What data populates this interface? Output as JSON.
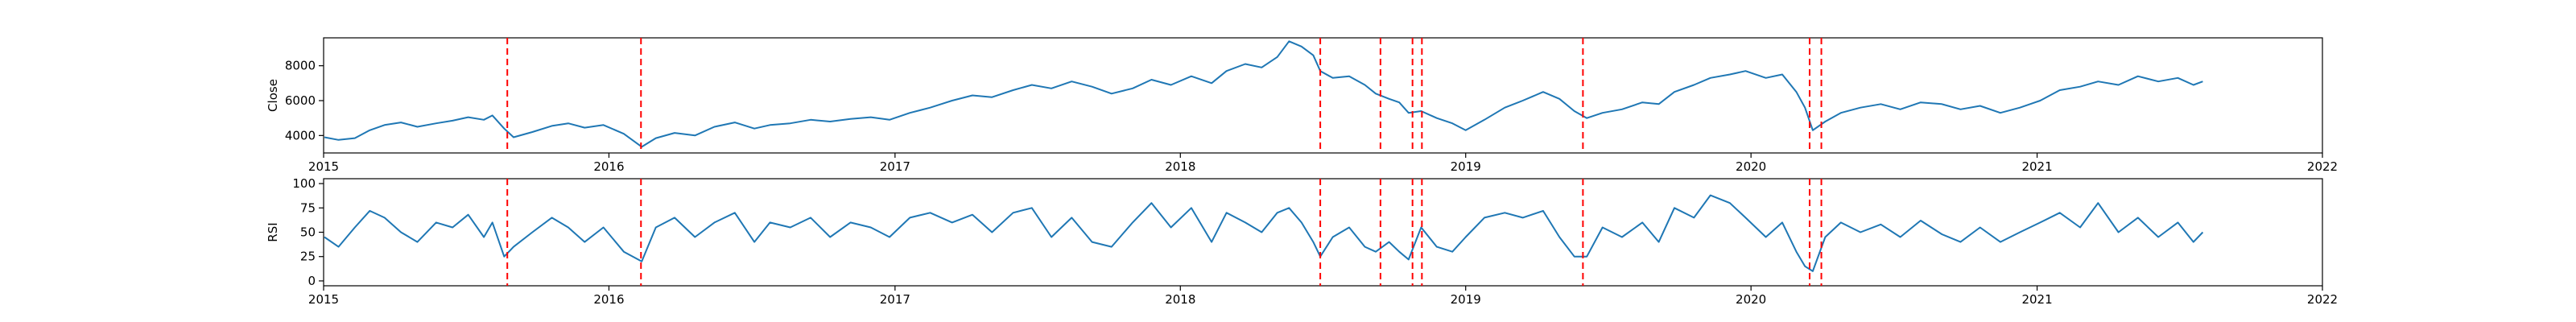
{
  "chart_data": [
    {
      "type": "line",
      "ylabel": "Close",
      "xlim": [
        "2015-01-01",
        "2022-01-01"
      ],
      "ylim": [
        3000,
        9600
      ],
      "x_ticks": [
        "2015",
        "2016",
        "2017",
        "2018",
        "2019",
        "2020",
        "2021",
        "2022"
      ],
      "y_ticks": [
        4000,
        6000,
        8000
      ],
      "line_color": "#1f77b4",
      "series": [
        {
          "values": [
            [
              "2015-01-02",
              3900
            ],
            [
              "2015-01-20",
              3750
            ],
            [
              "2015-02-10",
              3850
            ],
            [
              "2015-03-01",
              4300
            ],
            [
              "2015-03-20",
              4600
            ],
            [
              "2015-04-10",
              4750
            ],
            [
              "2015-05-01",
              4500
            ],
            [
              "2015-05-25",
              4700
            ],
            [
              "2015-06-15",
              4850
            ],
            [
              "2015-07-05",
              5050
            ],
            [
              "2015-07-25",
              4900
            ],
            [
              "2015-08-05",
              5150
            ],
            [
              "2015-08-20",
              4400
            ],
            [
              "2015-09-01",
              3900
            ],
            [
              "2015-09-25",
              4200
            ],
            [
              "2015-10-20",
              4550
            ],
            [
              "2015-11-10",
              4700
            ],
            [
              "2015-12-01",
              4450
            ],
            [
              "2015-12-25",
              4600
            ],
            [
              "2016-01-20",
              4100
            ],
            [
              "2016-02-12",
              3350
            ],
            [
              "2016-03-01",
              3850
            ],
            [
              "2016-03-25",
              4150
            ],
            [
              "2016-04-20",
              4000
            ],
            [
              "2016-05-15",
              4500
            ],
            [
              "2016-06-10",
              4750
            ],
            [
              "2016-07-05",
              4400
            ],
            [
              "2016-07-25",
              4600
            ],
            [
              "2016-08-20",
              4700
            ],
            [
              "2016-09-15",
              4900
            ],
            [
              "2016-10-10",
              4800
            ],
            [
              "2016-11-05",
              4950
            ],
            [
              "2016-12-01",
              5050
            ],
            [
              "2016-12-25",
              4900
            ],
            [
              "2017-01-20",
              5300
            ],
            [
              "2017-02-15",
              5600
            ],
            [
              "2017-03-15",
              6000
            ],
            [
              "2017-04-10",
              6300
            ],
            [
              "2017-05-05",
              6200
            ],
            [
              "2017-06-01",
              6600
            ],
            [
              "2017-06-25",
              6900
            ],
            [
              "2017-07-20",
              6700
            ],
            [
              "2017-08-15",
              7100
            ],
            [
              "2017-09-10",
              6800
            ],
            [
              "2017-10-05",
              6400
            ],
            [
              "2017-11-01",
              6700
            ],
            [
              "2017-11-25",
              7200
            ],
            [
              "2017-12-20",
              6900
            ],
            [
              "2018-01-15",
              7400
            ],
            [
              "2018-02-10",
              7000
            ],
            [
              "2018-03-01",
              7700
            ],
            [
              "2018-03-25",
              8100
            ],
            [
              "2018-04-15",
              7900
            ],
            [
              "2018-05-05",
              8500
            ],
            [
              "2018-05-20",
              9400
            ],
            [
              "2018-06-05",
              9100
            ],
            [
              "2018-06-20",
              8600
            ],
            [
              "2018-06-29",
              7700
            ],
            [
              "2018-07-15",
              7300
            ],
            [
              "2018-08-05",
              7400
            ],
            [
              "2018-08-25",
              6900
            ],
            [
              "2018-09-08",
              6400
            ],
            [
              "2018-09-25",
              6100
            ],
            [
              "2018-10-08",
              5900
            ],
            [
              "2018-10-20",
              5300
            ],
            [
              "2018-11-05",
              5400
            ],
            [
              "2018-11-25",
              5000
            ],
            [
              "2018-12-15",
              4700
            ],
            [
              "2019-01-01",
              4300
            ],
            [
              "2019-01-25",
              4900
            ],
            [
              "2019-02-20",
              5600
            ],
            [
              "2019-03-15",
              6000
            ],
            [
              "2019-04-10",
              6500
            ],
            [
              "2019-05-01",
              6100
            ],
            [
              "2019-05-20",
              5400
            ],
            [
              "2019-06-05",
              5000
            ],
            [
              "2019-06-25",
              5300
            ],
            [
              "2019-07-20",
              5500
            ],
            [
              "2019-08-15",
              5900
            ],
            [
              "2019-09-05",
              5800
            ],
            [
              "2019-09-25",
              6500
            ],
            [
              "2019-10-20",
              6900
            ],
            [
              "2019-11-10",
              7300
            ],
            [
              "2019-12-05",
              7500
            ],
            [
              "2019-12-25",
              7700
            ],
            [
              "2020-01-20",
              7300
            ],
            [
              "2020-02-10",
              7500
            ],
            [
              "2020-02-28",
              6500
            ],
            [
              "2020-03-10",
              5600
            ],
            [
              "2020-03-20",
              4300
            ],
            [
              "2020-04-05",
              4800
            ],
            [
              "2020-04-25",
              5300
            ],
            [
              "2020-05-20",
              5600
            ],
            [
              "2020-06-15",
              5800
            ],
            [
              "2020-07-10",
              5500
            ],
            [
              "2020-08-05",
              5900
            ],
            [
              "2020-09-01",
              5800
            ],
            [
              "2020-09-25",
              5500
            ],
            [
              "2020-10-20",
              5700
            ],
            [
              "2020-11-15",
              5300
            ],
            [
              "2020-12-10",
              5600
            ],
            [
              "2021-01-05",
              6000
            ],
            [
              "2021-01-30",
              6600
            ],
            [
              "2021-02-25",
              6800
            ],
            [
              "2021-03-20",
              7100
            ],
            [
              "2021-04-15",
              6900
            ],
            [
              "2021-05-10",
              7400
            ],
            [
              "2021-06-05",
              7100
            ],
            [
              "2021-06-30",
              7300
            ],
            [
              "2021-07-20",
              6900
            ],
            [
              "2021-08-01",
              7100
            ]
          ]
        }
      ]
    },
    {
      "type": "line",
      "ylabel": "RSI",
      "xlim": [
        "2015-01-01",
        "2022-01-01"
      ],
      "ylim": [
        -5,
        105
      ],
      "x_ticks": [
        "2015",
        "2016",
        "2017",
        "2018",
        "2019",
        "2020",
        "2021",
        "2022"
      ],
      "y_ticks": [
        0,
        25,
        50,
        75,
        100
      ],
      "line_color": "#1f77b4",
      "series": [
        {
          "values": [
            [
              "2015-01-02",
              45
            ],
            [
              "2015-01-20",
              35
            ],
            [
              "2015-02-10",
              55
            ],
            [
              "2015-03-01",
              72
            ],
            [
              "2015-03-20",
              65
            ],
            [
              "2015-04-10",
              50
            ],
            [
              "2015-05-01",
              40
            ],
            [
              "2015-05-25",
              60
            ],
            [
              "2015-06-15",
              55
            ],
            [
              "2015-07-05",
              68
            ],
            [
              "2015-07-25",
              45
            ],
            [
              "2015-08-05",
              60
            ],
            [
              "2015-08-20",
              25
            ],
            [
              "2015-09-01",
              35
            ],
            [
              "2015-09-25",
              50
            ],
            [
              "2015-10-20",
              65
            ],
            [
              "2015-11-10",
              55
            ],
            [
              "2015-12-01",
              40
            ],
            [
              "2015-12-25",
              55
            ],
            [
              "2016-01-20",
              30
            ],
            [
              "2016-02-12",
              20
            ],
            [
              "2016-03-01",
              55
            ],
            [
              "2016-03-25",
              65
            ],
            [
              "2016-04-20",
              45
            ],
            [
              "2016-05-15",
              60
            ],
            [
              "2016-06-10",
              70
            ],
            [
              "2016-07-05",
              40
            ],
            [
              "2016-07-25",
              60
            ],
            [
              "2016-08-20",
              55
            ],
            [
              "2016-09-15",
              65
            ],
            [
              "2016-10-10",
              45
            ],
            [
              "2016-11-05",
              60
            ],
            [
              "2016-12-01",
              55
            ],
            [
              "2016-12-25",
              45
            ],
            [
              "2017-01-20",
              65
            ],
            [
              "2017-02-15",
              70
            ],
            [
              "2017-03-15",
              60
            ],
            [
              "2017-04-10",
              68
            ],
            [
              "2017-05-05",
              50
            ],
            [
              "2017-06-01",
              70
            ],
            [
              "2017-06-25",
              75
            ],
            [
              "2017-07-20",
              45
            ],
            [
              "2017-08-15",
              65
            ],
            [
              "2017-09-10",
              40
            ],
            [
              "2017-10-05",
              35
            ],
            [
              "2017-11-01",
              60
            ],
            [
              "2017-11-25",
              80
            ],
            [
              "2017-12-20",
              55
            ],
            [
              "2018-01-15",
              75
            ],
            [
              "2018-02-10",
              40
            ],
            [
              "2018-03-01",
              70
            ],
            [
              "2018-03-25",
              60
            ],
            [
              "2018-04-15",
              50
            ],
            [
              "2018-05-05",
              70
            ],
            [
              "2018-05-20",
              75
            ],
            [
              "2018-06-05",
              60
            ],
            [
              "2018-06-20",
              40
            ],
            [
              "2018-06-29",
              25
            ],
            [
              "2018-07-15",
              45
            ],
            [
              "2018-08-05",
              55
            ],
            [
              "2018-08-25",
              35
            ],
            [
              "2018-09-08",
              30
            ],
            [
              "2018-09-25",
              40
            ],
            [
              "2018-10-08",
              30
            ],
            [
              "2018-10-20",
              22
            ],
            [
              "2018-11-05",
              55
            ],
            [
              "2018-11-25",
              35
            ],
            [
              "2018-12-15",
              30
            ],
            [
              "2019-01-01",
              45
            ],
            [
              "2019-01-25",
              65
            ],
            [
              "2019-02-20",
              70
            ],
            [
              "2019-03-15",
              65
            ],
            [
              "2019-04-10",
              72
            ],
            [
              "2019-05-01",
              45
            ],
            [
              "2019-05-20",
              25
            ],
            [
              "2019-06-05",
              25
            ],
            [
              "2019-06-25",
              55
            ],
            [
              "2019-07-20",
              45
            ],
            [
              "2019-08-15",
              60
            ],
            [
              "2019-09-05",
              40
            ],
            [
              "2019-09-25",
              75
            ],
            [
              "2019-10-20",
              65
            ],
            [
              "2019-11-10",
              88
            ],
            [
              "2019-12-05",
              80
            ],
            [
              "2019-12-25",
              65
            ],
            [
              "2020-01-20",
              45
            ],
            [
              "2020-02-10",
              60
            ],
            [
              "2020-02-28",
              30
            ],
            [
              "2020-03-10",
              15
            ],
            [
              "2020-03-20",
              10
            ],
            [
              "2020-04-05",
              45
            ],
            [
              "2020-04-25",
              60
            ],
            [
              "2020-05-20",
              50
            ],
            [
              "2020-06-15",
              58
            ],
            [
              "2020-07-10",
              45
            ],
            [
              "2020-08-05",
              62
            ],
            [
              "2020-09-01",
              48
            ],
            [
              "2020-09-25",
              40
            ],
            [
              "2020-10-20",
              55
            ],
            [
              "2020-11-15",
              40
            ],
            [
              "2020-12-10",
              50
            ],
            [
              "2021-01-05",
              60
            ],
            [
              "2021-01-30",
              70
            ],
            [
              "2021-02-25",
              55
            ],
            [
              "2021-03-20",
              80
            ],
            [
              "2021-04-15",
              50
            ],
            [
              "2021-05-10",
              65
            ],
            [
              "2021-06-05",
              45
            ],
            [
              "2021-06-30",
              60
            ],
            [
              "2021-07-20",
              40
            ],
            [
              "2021-08-01",
              50
            ]
          ]
        }
      ]
    }
  ],
  "event_markers": {
    "color": "#ff0000",
    "style": "dashed",
    "dates": [
      "2015-08-24",
      "2016-02-11",
      "2018-06-29",
      "2018-09-14",
      "2018-10-25",
      "2018-11-06",
      "2019-05-31",
      "2020-03-16",
      "2020-03-31"
    ]
  }
}
